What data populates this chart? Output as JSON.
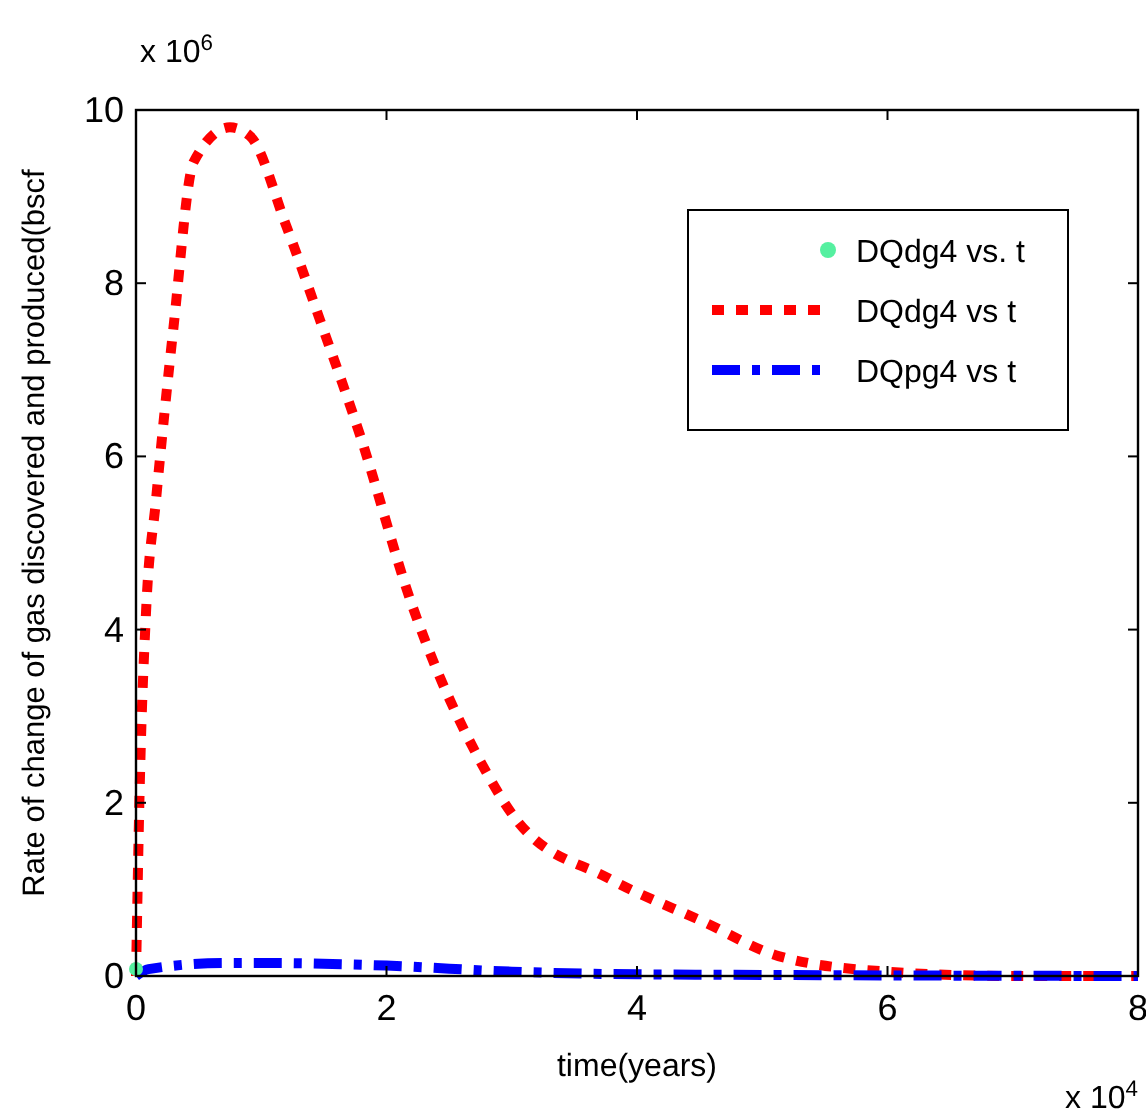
{
  "chart_data": {
    "type": "line",
    "xlabel": "time(years)",
    "ylabel": "Rate of change of gas discovered and produced(bscf",
    "annotations": [
      "x 10$^{6}$",
      "x 10$^{4}$"
    ],
    "xlim": [
      0,
      8
    ],
    "xticks": [
      0,
      2,
      4,
      6,
      8
    ],
    "ylim": [
      0,
      10
    ],
    "yticks": [
      0,
      2,
      4,
      6,
      8,
      10
    ],
    "grid": false,
    "legend": "top right",
    "series": [
      {
        "name": "DQdg4 vs. t",
        "type": "scatter",
        "marker": "circle",
        "color": "#55f0a0",
        "x": [
          0
        ],
        "values": [
          0.08
        ]
      },
      {
        "name": "DQdg4 vs t",
        "color": "#ff0000",
        "line_style": "dotted",
        "x": [
          0,
          0.03,
          0.08,
          0.16,
          0.3,
          0.46,
          0.75,
          0.91,
          1.2,
          1.47,
          1.79,
          2.2,
          2.76,
          3.05,
          3.77,
          4.54,
          5.13,
          6,
          7,
          8
        ],
        "values": [
          0,
          2.2,
          4.2,
          5.5,
          7.5,
          9.4,
          9.8,
          9.7,
          8.66,
          7.57,
          6.24,
          4.3,
          2.45,
          1.78,
          1.13,
          0.62,
          0.23,
          0.05,
          0,
          0
        ]
      },
      {
        "name": "DQpg4 vs t",
        "color": "#0000ff",
        "line_style": "dashdot",
        "x": [
          0,
          0.1,
          0.7,
          1,
          2,
          3,
          4,
          8
        ],
        "values": [
          0,
          0.08,
          0.15,
          0.15,
          0.12,
          0.05,
          0.02,
          0
        ]
      }
    ]
  }
}
